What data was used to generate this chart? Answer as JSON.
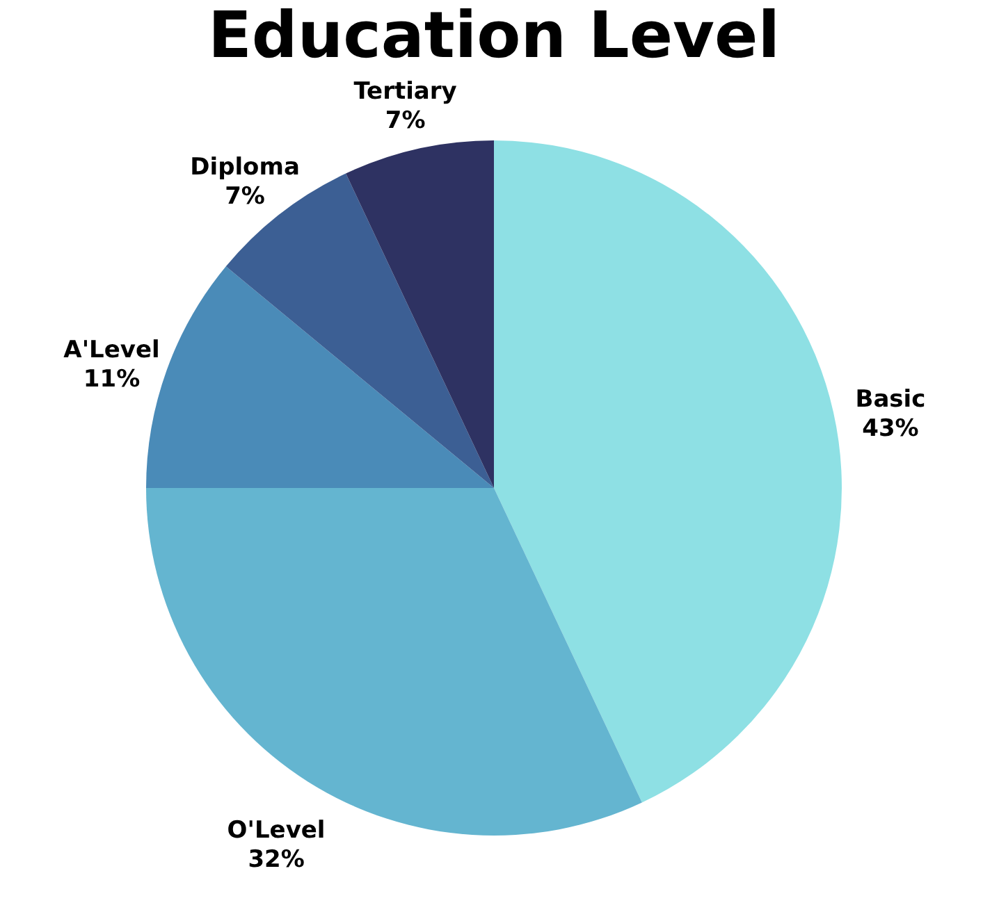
{
  "chart_data": {
    "type": "pie",
    "title": "Education Level",
    "categories": [
      "Basic",
      "O'Level",
      "A'Level",
      "Diploma",
      "Tertiary"
    ],
    "values": [
      43,
      32,
      11,
      7,
      7
    ],
    "value_labels": [
      "43%",
      "32%",
      "11%",
      "7%",
      "7%"
    ],
    "colors": [
      "#8ee0e4",
      "#64b5d0",
      "#4a8bb8",
      "#3c5f94",
      "#2e3262"
    ],
    "legend": false
  }
}
